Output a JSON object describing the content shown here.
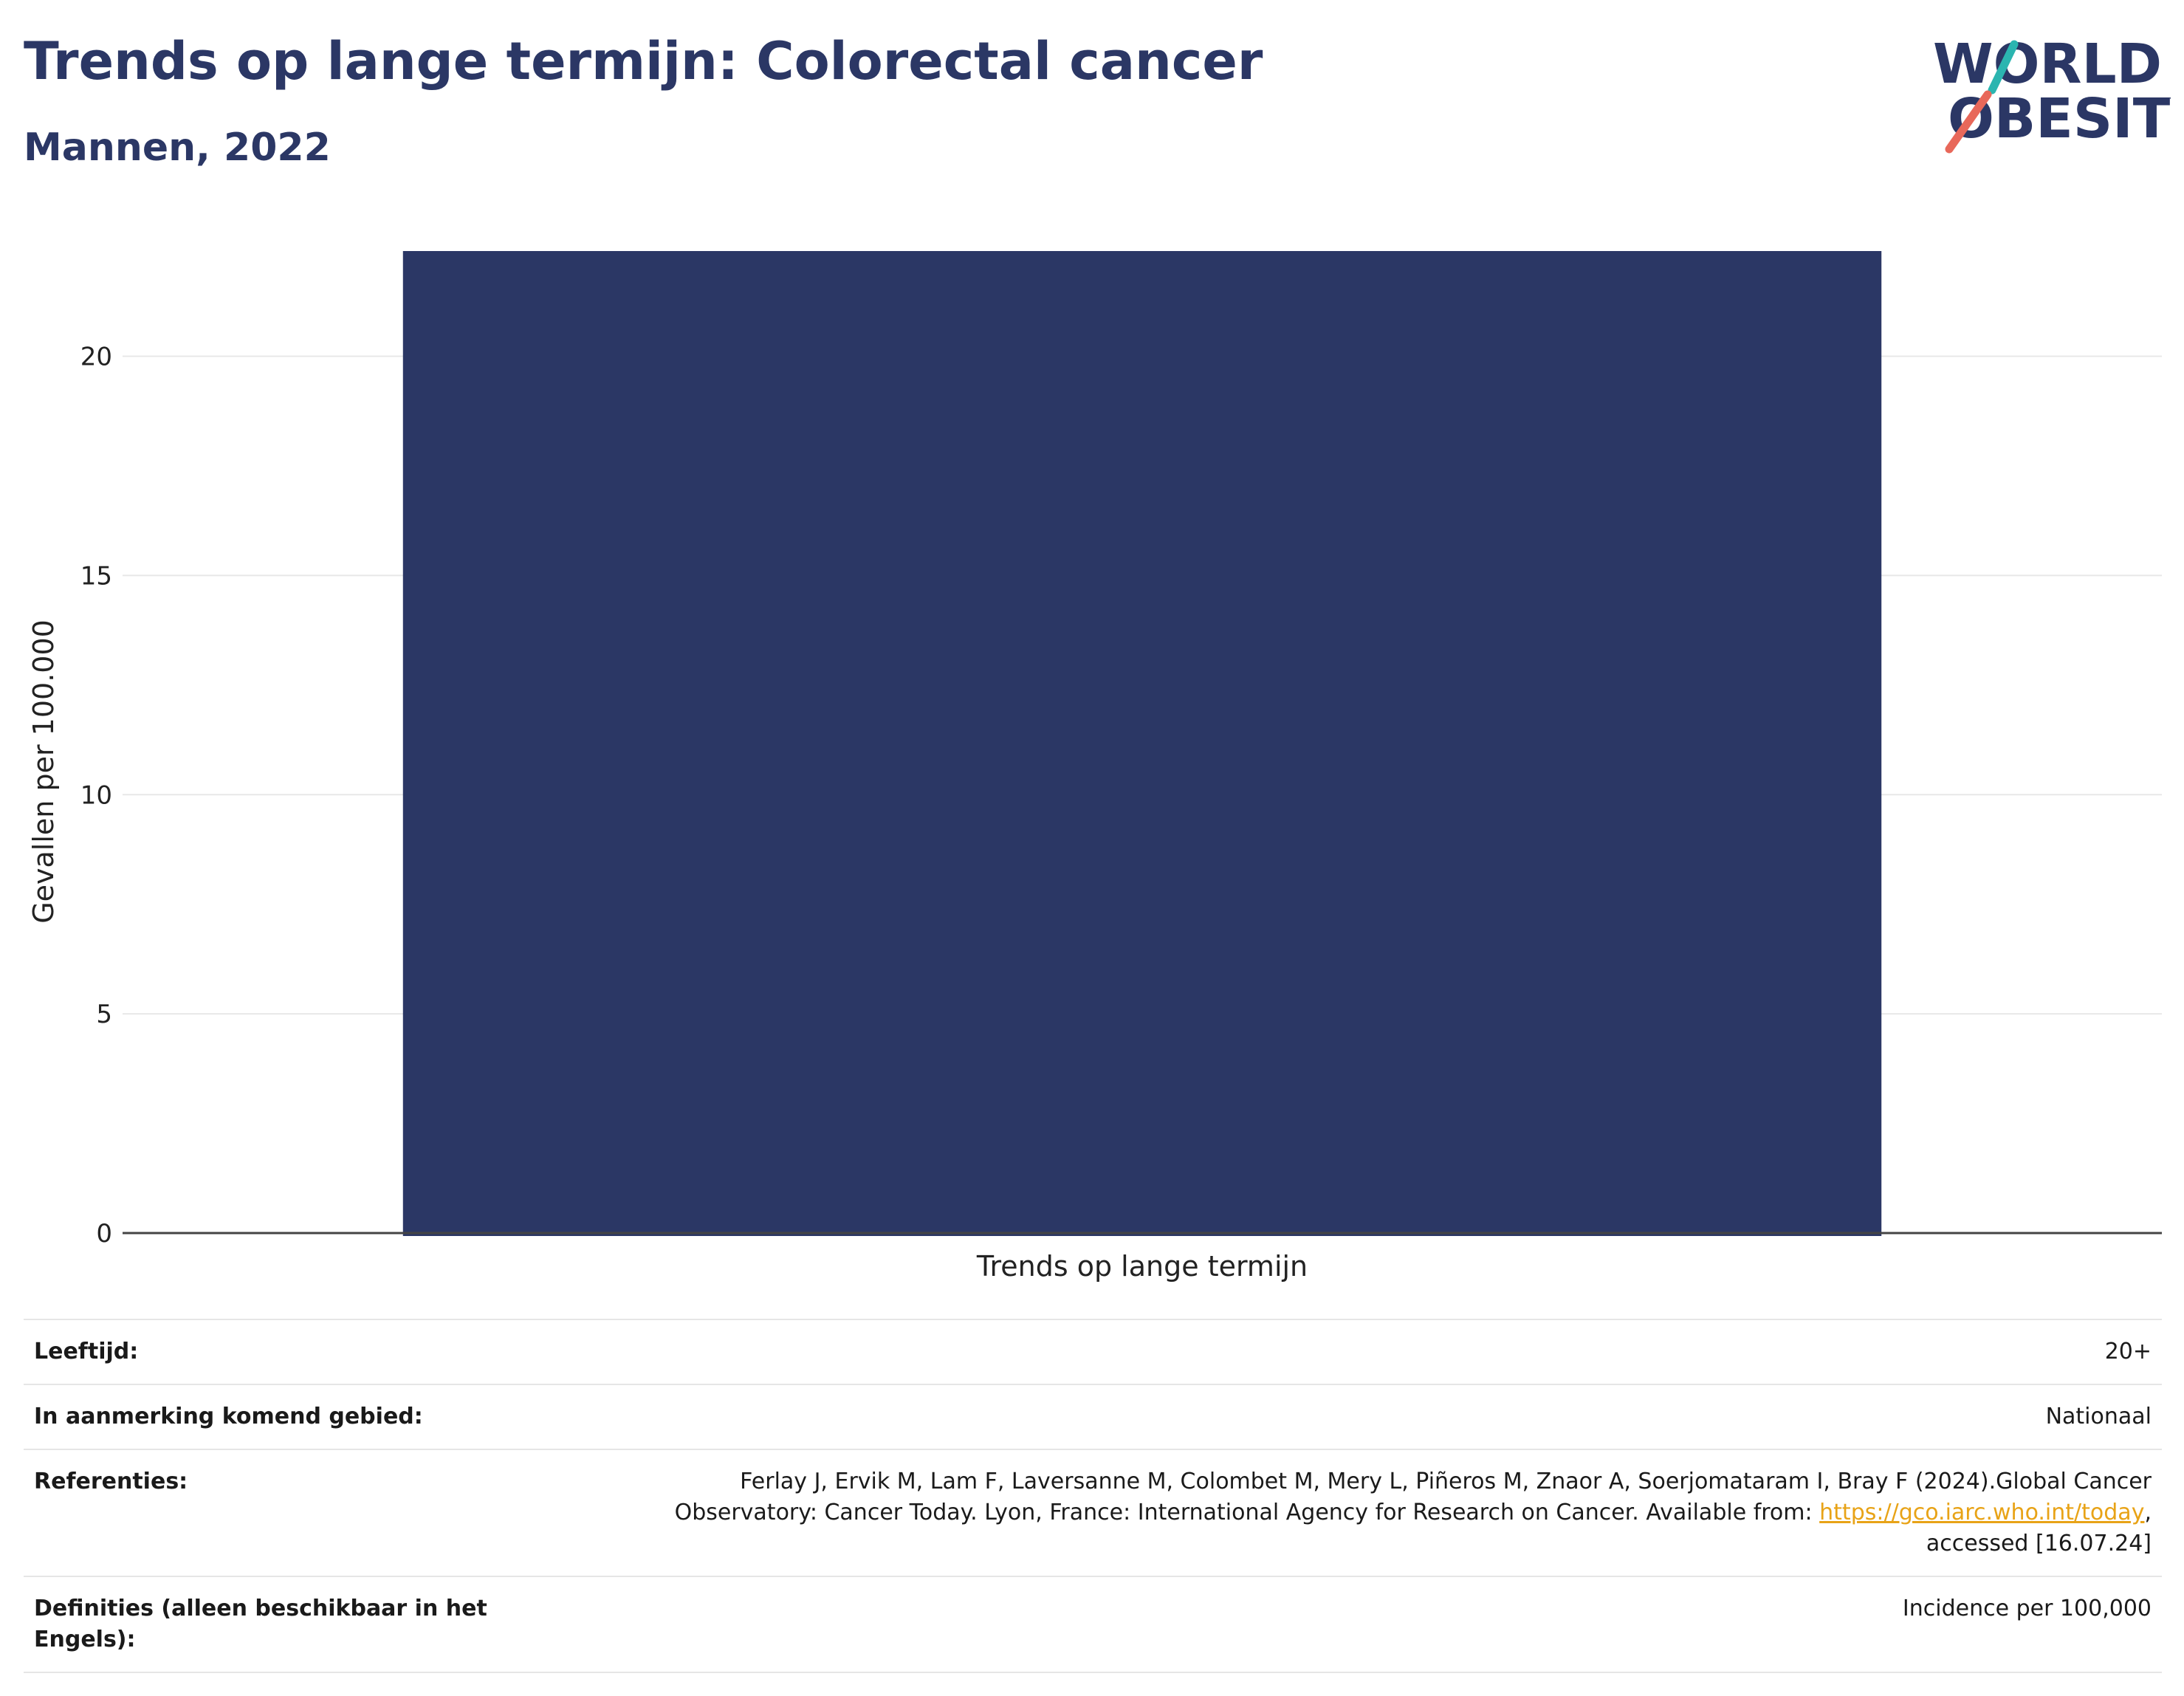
{
  "header": {
    "title": "Trends op lange termijn: Colorectal cancer",
    "subtitle": "Mannen, 2022"
  },
  "logo": {
    "line1": "WORLD",
    "line2": "OBESITY",
    "colors": {
      "text": "#2b3765",
      "slash_top": "#2bb5b0",
      "slash_bottom": "#e8685a"
    }
  },
  "chart_data": {
    "type": "bar",
    "categories": [
      "Trends op lange termijn"
    ],
    "values": [
      22.4
    ],
    "xlabel": "Trends op lange termijn",
    "ylabel": "Gevallen per 100.000",
    "ylim": [
      0,
      22.4
    ],
    "yticks": [
      0,
      5,
      10,
      15,
      20
    ],
    "grid": true,
    "bar_color": "#2b3765"
  },
  "info": {
    "rows": [
      {
        "label": "Leeftijd:",
        "value": "20+"
      },
      {
        "label": "In aanmerking komend gebied:",
        "value": "Nationaal"
      },
      {
        "label": "Referenties:",
        "value_before": "Ferlay J, Ervik M, Lam F, Laversanne M, Colombet M, Mery L, Piñeros M, Znaor A, Soerjomataram I, Bray F (2024).Global Cancer Observatory: Cancer Today. Lyon, France: International Agency for Research on Cancer. Available from: ",
        "link": "https://gco.iarc.who.int/today",
        "value_after": ", accessed [16.07.24]"
      },
      {
        "label": "Definities (alleen beschikbaar in het Engels):",
        "value": "Incidence per 100,000"
      }
    ]
  }
}
